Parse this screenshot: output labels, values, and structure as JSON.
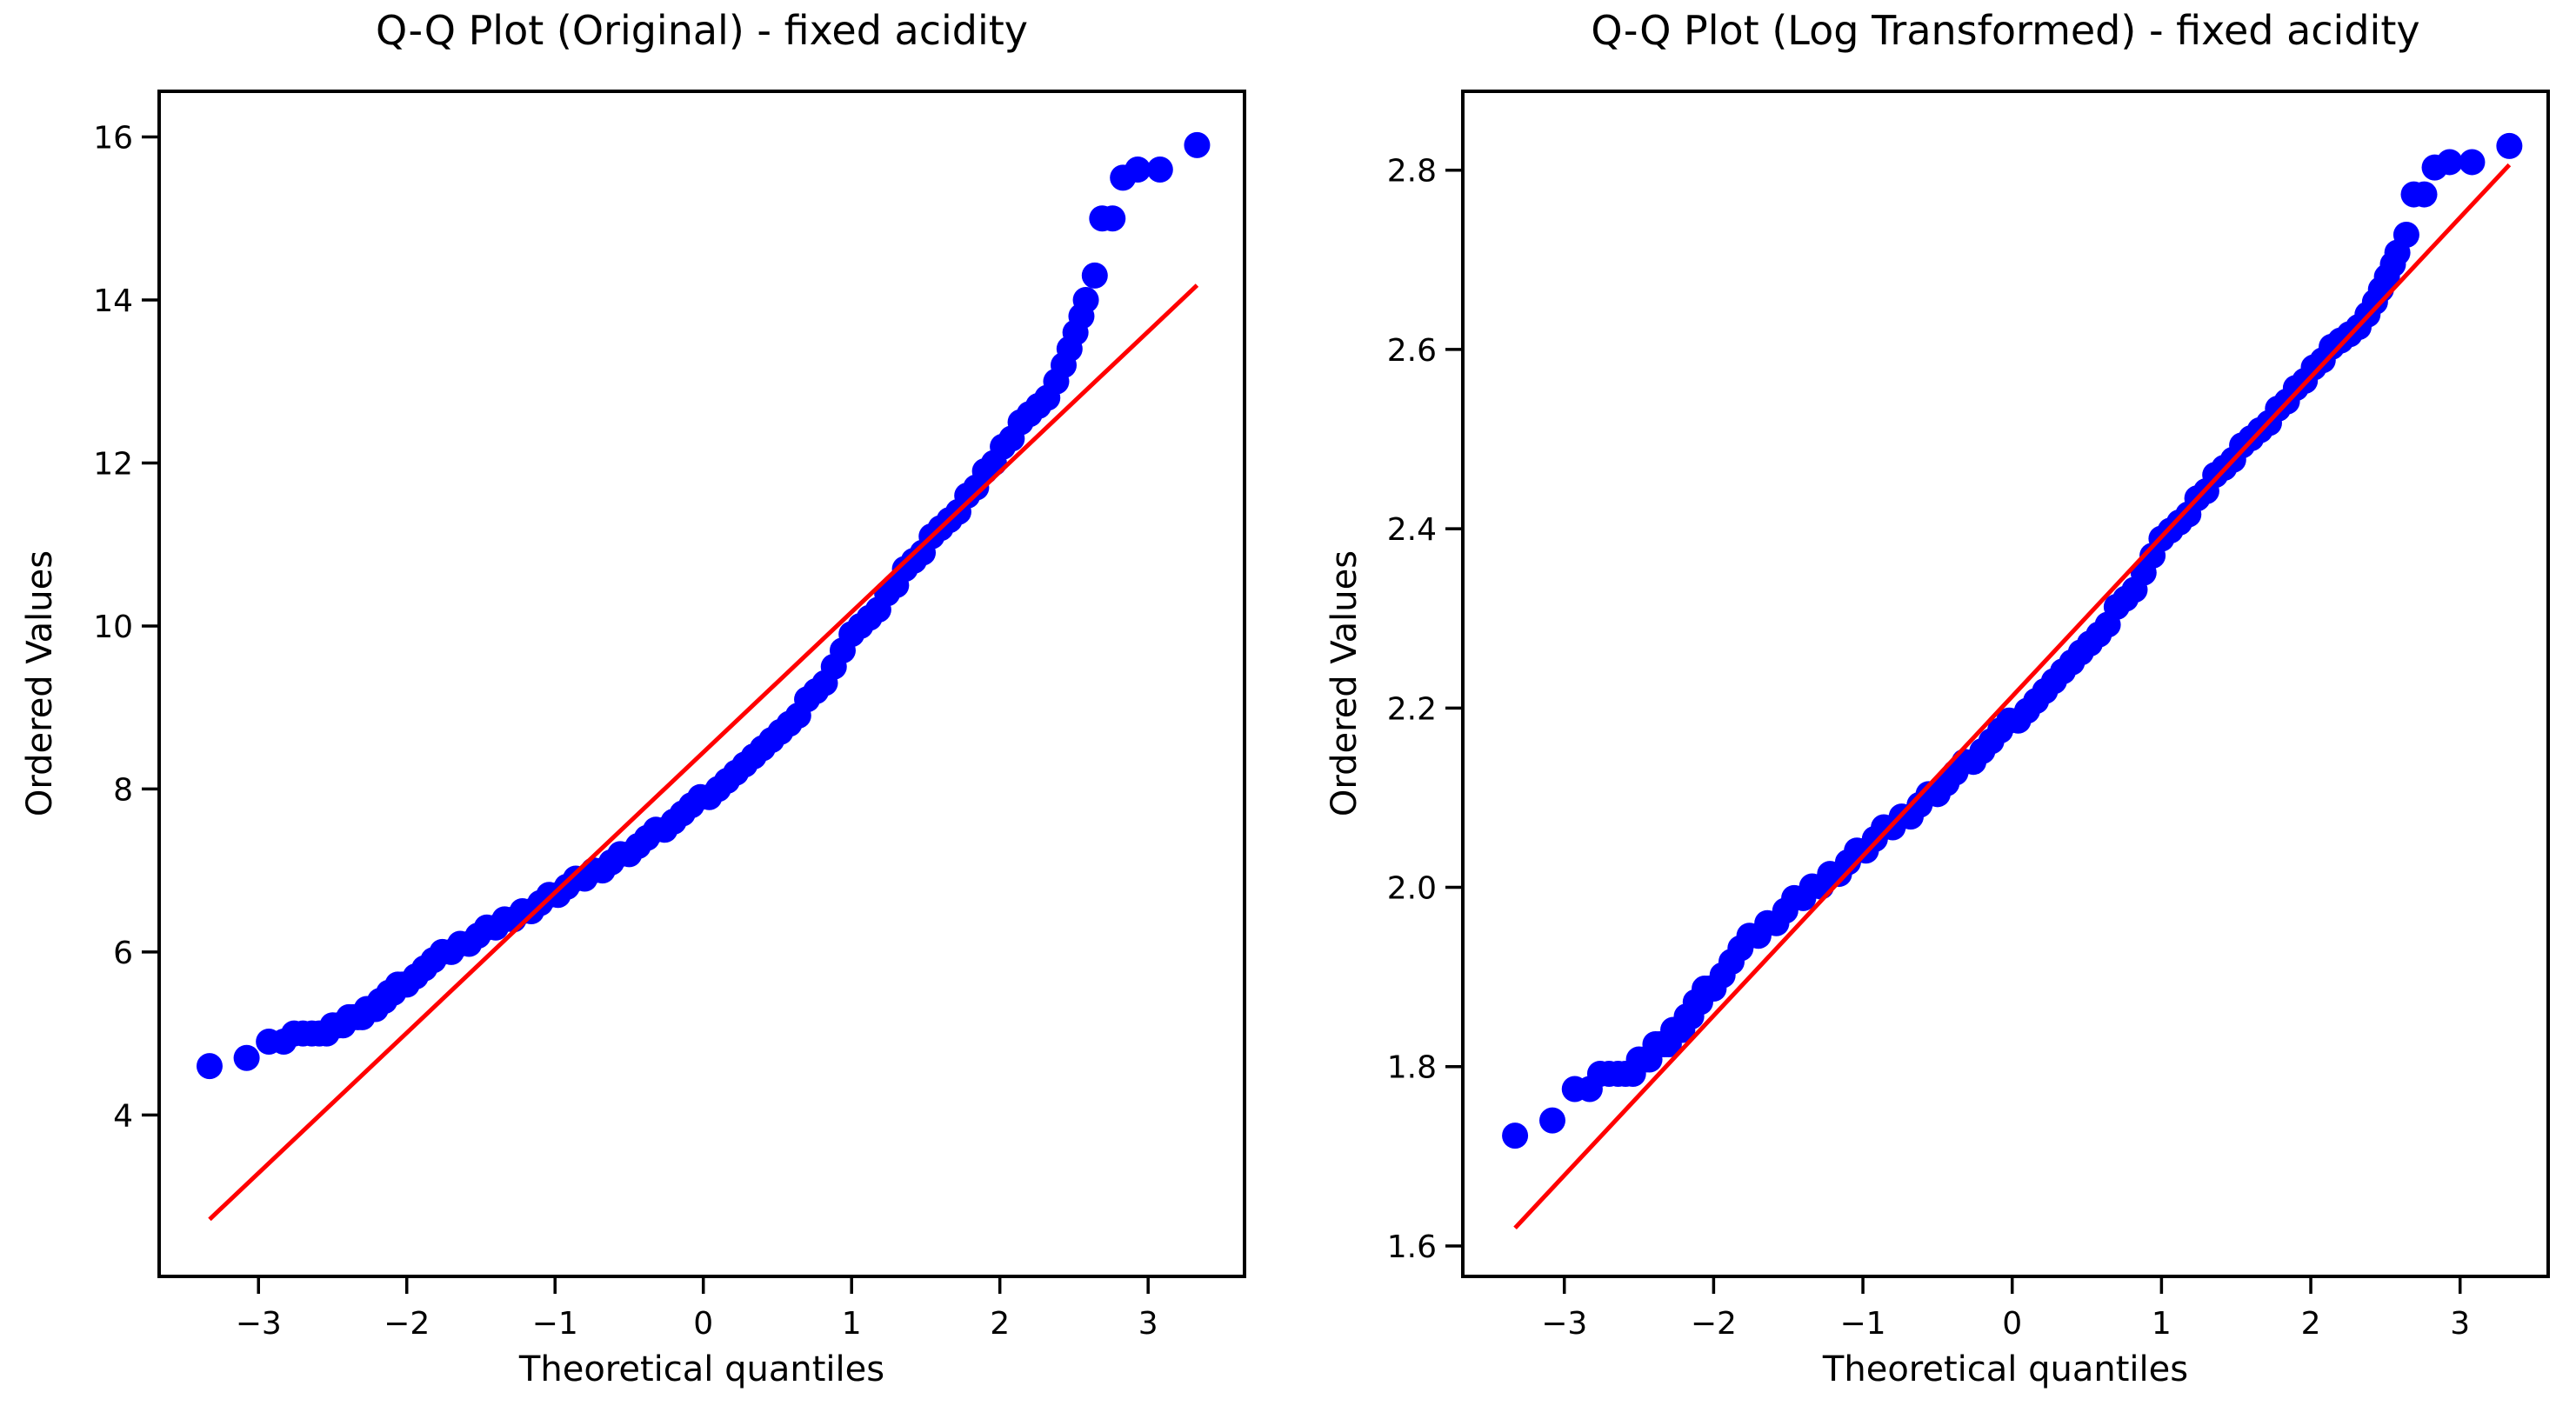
{
  "figure": {
    "background": "#ffffff"
  },
  "colors": {
    "point": "#0000ff",
    "fit_line": "#ff0000",
    "axis": "#000000",
    "text": "#000000"
  },
  "chart_data": [
    {
      "type": "scatter",
      "subtype": "qq-plot",
      "title": "Q-Q Plot (Original) - fixed acidity",
      "xlabel": "Theoretical quantiles",
      "ylabel": "Ordered Values",
      "xlim": [
        -3.67,
        3.65
      ],
      "ylim": [
        2.02,
        16.56
      ],
      "xticks": [
        -3,
        -2,
        -1,
        0,
        1,
        2,
        3
      ],
      "xtick_labels": [
        "−3",
        "−2",
        "−1",
        "0",
        "1",
        "2",
        "3"
      ],
      "yticks": [
        4,
        6,
        8,
        10,
        12,
        14,
        16
      ],
      "ytick_labels": [
        "4",
        "6",
        "8",
        "10",
        "12",
        "14",
        "16"
      ],
      "grid": false,
      "legend": null,
      "marker_color": "#0000ff",
      "line_color": "#ff0000",
      "fit_line": [
        [
          -3.33,
          2.72
        ],
        [
          3.33,
          14.18
        ]
      ],
      "points": [
        [
          -3.33,
          4.6
        ],
        [
          -3.08,
          4.7
        ],
        [
          -2.93,
          4.9
        ],
        [
          -2.83,
          4.9
        ],
        [
          -2.76,
          5.0
        ],
        [
          -2.7,
          5.0
        ],
        [
          -2.64,
          5.0
        ],
        [
          -2.59,
          5.0
        ],
        [
          -2.54,
          5.0
        ],
        [
          -2.5,
          5.1
        ],
        [
          -2.46,
          5.1
        ],
        [
          -2.43,
          5.1
        ],
        [
          -2.39,
          5.2
        ],
        [
          -2.36,
          5.2
        ],
        [
          -2.33,
          5.2
        ],
        [
          -2.3,
          5.2
        ],
        [
          -2.27,
          5.3
        ],
        [
          -2.24,
          5.3
        ],
        [
          -2.21,
          5.3
        ],
        [
          -2.18,
          5.4
        ],
        [
          -2.15,
          5.4
        ],
        [
          -2.12,
          5.5
        ],
        [
          -2.09,
          5.5
        ],
        [
          -2.06,
          5.6
        ],
        [
          -2.03,
          5.6
        ],
        [
          -2.0,
          5.6
        ],
        [
          -1.94,
          5.7
        ],
        [
          -1.88,
          5.8
        ],
        [
          -1.82,
          5.9
        ],
        [
          -1.76,
          6.0
        ],
        [
          -1.7,
          6.0
        ],
        [
          -1.64,
          6.1
        ],
        [
          -1.58,
          6.1
        ],
        [
          -1.52,
          6.2
        ],
        [
          -1.46,
          6.3
        ],
        [
          -1.4,
          6.3
        ],
        [
          -1.34,
          6.4
        ],
        [
          -1.28,
          6.4
        ],
        [
          -1.22,
          6.5
        ],
        [
          -1.16,
          6.5
        ],
        [
          -1.1,
          6.6
        ],
        [
          -1.04,
          6.7
        ],
        [
          -0.98,
          6.7
        ],
        [
          -0.92,
          6.8
        ],
        [
          -0.86,
          6.9
        ],
        [
          -0.8,
          6.9
        ],
        [
          -0.74,
          7.0
        ],
        [
          -0.68,
          7.0
        ],
        [
          -0.62,
          7.1
        ],
        [
          -0.56,
          7.2
        ],
        [
          -0.5,
          7.2
        ],
        [
          -0.44,
          7.3
        ],
        [
          -0.38,
          7.4
        ],
        [
          -0.32,
          7.5
        ],
        [
          -0.26,
          7.5
        ],
        [
          -0.2,
          7.6
        ],
        [
          -0.14,
          7.7
        ],
        [
          -0.08,
          7.8
        ],
        [
          -0.02,
          7.9
        ],
        [
          0.04,
          7.9
        ],
        [
          0.1,
          8.0
        ],
        [
          0.16,
          8.1
        ],
        [
          0.22,
          8.2
        ],
        [
          0.28,
          8.3
        ],
        [
          0.34,
          8.4
        ],
        [
          0.4,
          8.5
        ],
        [
          0.46,
          8.6
        ],
        [
          0.52,
          8.7
        ],
        [
          0.58,
          8.8
        ],
        [
          0.64,
          8.9
        ],
        [
          0.7,
          9.1
        ],
        [
          0.76,
          9.2
        ],
        [
          0.82,
          9.3
        ],
        [
          0.88,
          9.5
        ],
        [
          0.94,
          9.7
        ],
        [
          1.0,
          9.9
        ],
        [
          1.06,
          10.0
        ],
        [
          1.12,
          10.1
        ],
        [
          1.18,
          10.2
        ],
        [
          1.24,
          10.4
        ],
        [
          1.3,
          10.5
        ],
        [
          1.36,
          10.7
        ],
        [
          1.42,
          10.8
        ],
        [
          1.48,
          10.9
        ],
        [
          1.54,
          11.1
        ],
        [
          1.6,
          11.2
        ],
        [
          1.66,
          11.3
        ],
        [
          1.72,
          11.4
        ],
        [
          1.78,
          11.6
        ],
        [
          1.84,
          11.7
        ],
        [
          1.9,
          11.9
        ],
        [
          1.96,
          12.0
        ],
        [
          2.02,
          12.2
        ],
        [
          2.08,
          12.3
        ],
        [
          2.14,
          12.5
        ],
        [
          2.2,
          12.6
        ],
        [
          2.26,
          12.7
        ],
        [
          2.32,
          12.8
        ],
        [
          2.38,
          13.0
        ],
        [
          2.43,
          13.2
        ],
        [
          2.47,
          13.4
        ],
        [
          2.51,
          13.6
        ],
        [
          2.55,
          13.8
        ],
        [
          2.58,
          14.0
        ],
        [
          2.64,
          14.3
        ],
        [
          2.69,
          15.0
        ],
        [
          2.76,
          15.0
        ],
        [
          2.83,
          15.5
        ],
        [
          2.93,
          15.6
        ],
        [
          3.08,
          15.6
        ],
        [
          3.33,
          15.9
        ]
      ]
    },
    {
      "type": "scatter",
      "subtype": "qq-plot",
      "title": "Q-Q Plot (Log Transformed) - fixed acidity",
      "xlabel": "Theoretical quantiles",
      "ylabel": "Ordered Values",
      "xlim": [
        -3.68,
        3.59
      ],
      "ylim": [
        1.566,
        2.888
      ],
      "xticks": [
        -3,
        -2,
        -1,
        0,
        1,
        2,
        3
      ],
      "xtick_labels": [
        "−3",
        "−2",
        "−1",
        "0",
        "1",
        "2",
        "3"
      ],
      "yticks": [
        1.6,
        1.8,
        2.0,
        2.2,
        2.4,
        2.6,
        2.8
      ],
      "ytick_labels": [
        "1.6",
        "1.8",
        "2.0",
        "2.2",
        "2.4",
        "2.6",
        "2.8"
      ],
      "grid": false,
      "legend": null,
      "marker_color": "#0000ff",
      "line_color": "#ff0000",
      "fit_line": [
        [
          -3.33,
          1.62
        ],
        [
          3.33,
          2.806
        ]
      ],
      "points": [
        [
          -3.33,
          1.723
        ],
        [
          -3.08,
          1.74
        ],
        [
          -2.93,
          1.775
        ],
        [
          -2.83,
          1.775
        ],
        [
          -2.76,
          1.792
        ],
        [
          -2.7,
          1.792
        ],
        [
          -2.64,
          1.792
        ],
        [
          -2.59,
          1.792
        ],
        [
          -2.54,
          1.792
        ],
        [
          -2.5,
          1.808
        ],
        [
          -2.46,
          1.808
        ],
        [
          -2.43,
          1.808
        ],
        [
          -2.39,
          1.825
        ],
        [
          -2.36,
          1.825
        ],
        [
          -2.33,
          1.825
        ],
        [
          -2.3,
          1.825
        ],
        [
          -2.27,
          1.841
        ],
        [
          -2.24,
          1.841
        ],
        [
          -2.21,
          1.841
        ],
        [
          -2.18,
          1.856
        ],
        [
          -2.15,
          1.856
        ],
        [
          -2.12,
          1.872
        ],
        [
          -2.09,
          1.872
        ],
        [
          -2.06,
          1.887
        ],
        [
          -2.03,
          1.887
        ],
        [
          -2.0,
          1.887
        ],
        [
          -1.94,
          1.902
        ],
        [
          -1.88,
          1.917
        ],
        [
          -1.82,
          1.932
        ],
        [
          -1.76,
          1.946
        ],
        [
          -1.7,
          1.946
        ],
        [
          -1.64,
          1.96
        ],
        [
          -1.58,
          1.96
        ],
        [
          -1.52,
          1.974
        ],
        [
          -1.46,
          1.988
        ],
        [
          -1.4,
          1.988
        ],
        [
          -1.34,
          2.001
        ],
        [
          -1.28,
          2.001
        ],
        [
          -1.22,
          2.015
        ],
        [
          -1.16,
          2.015
        ],
        [
          -1.1,
          2.028
        ],
        [
          -1.04,
          2.041
        ],
        [
          -0.98,
          2.041
        ],
        [
          -0.92,
          2.054
        ],
        [
          -0.86,
          2.067
        ],
        [
          -0.8,
          2.067
        ],
        [
          -0.74,
          2.079
        ],
        [
          -0.68,
          2.079
        ],
        [
          -0.62,
          2.092
        ],
        [
          -0.56,
          2.104
        ],
        [
          -0.5,
          2.104
        ],
        [
          -0.44,
          2.116
        ],
        [
          -0.38,
          2.128
        ],
        [
          -0.32,
          2.14
        ],
        [
          -0.26,
          2.14
        ],
        [
          -0.2,
          2.152
        ],
        [
          -0.14,
          2.163
        ],
        [
          -0.08,
          2.175
        ],
        [
          -0.02,
          2.186
        ],
        [
          0.04,
          2.186
        ],
        [
          0.1,
          2.197
        ],
        [
          0.16,
          2.208
        ],
        [
          0.22,
          2.219
        ],
        [
          0.28,
          2.23
        ],
        [
          0.34,
          2.241
        ],
        [
          0.4,
          2.251
        ],
        [
          0.46,
          2.262
        ],
        [
          0.52,
          2.272
        ],
        [
          0.58,
          2.282
        ],
        [
          0.64,
          2.293
        ],
        [
          0.7,
          2.313
        ],
        [
          0.76,
          2.322
        ],
        [
          0.82,
          2.332
        ],
        [
          0.88,
          2.351
        ],
        [
          0.94,
          2.37
        ],
        [
          1.0,
          2.389
        ],
        [
          1.06,
          2.398
        ],
        [
          1.12,
          2.407
        ],
        [
          1.18,
          2.416
        ],
        [
          1.24,
          2.434
        ],
        [
          1.3,
          2.442
        ],
        [
          1.36,
          2.46
        ],
        [
          1.42,
          2.468
        ],
        [
          1.48,
          2.477
        ],
        [
          1.54,
          2.493
        ],
        [
          1.6,
          2.501
        ],
        [
          1.66,
          2.51
        ],
        [
          1.72,
          2.518
        ],
        [
          1.78,
          2.534
        ],
        [
          1.84,
          2.542
        ],
        [
          1.9,
          2.557
        ],
        [
          1.96,
          2.565
        ],
        [
          2.02,
          2.58
        ],
        [
          2.08,
          2.588
        ],
        [
          2.14,
          2.603
        ],
        [
          2.2,
          2.61
        ],
        [
          2.26,
          2.617
        ],
        [
          2.32,
          2.625
        ],
        [
          2.38,
          2.639
        ],
        [
          2.43,
          2.653
        ],
        [
          2.47,
          2.667
        ],
        [
          2.51,
          2.681
        ],
        [
          2.55,
          2.695
        ],
        [
          2.58,
          2.708
        ],
        [
          2.64,
          2.728
        ],
        [
          2.69,
          2.773
        ],
        [
          2.76,
          2.773
        ],
        [
          2.83,
          2.803
        ],
        [
          2.93,
          2.809
        ],
        [
          3.08,
          2.809
        ],
        [
          3.33,
          2.827
        ]
      ]
    }
  ]
}
